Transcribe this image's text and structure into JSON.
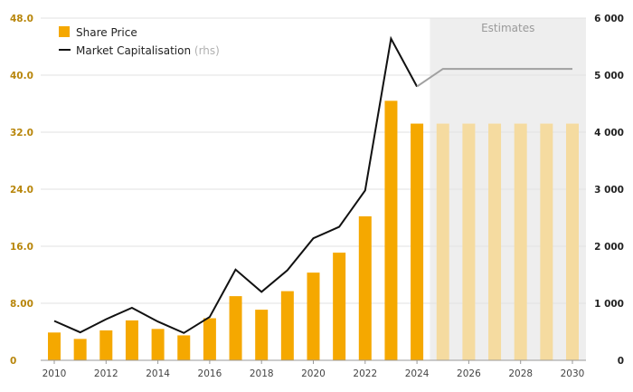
{
  "chart_data": {
    "type": "bar",
    "x": [
      "2010",
      "2011",
      "2012",
      "2013",
      "2014",
      "2015",
      "2016",
      "2017",
      "2018",
      "2019",
      "2020",
      "2021",
      "2022",
      "2023",
      "2024",
      "2025",
      "2026",
      "2027",
      "2028",
      "2029",
      "2030"
    ],
    "x_tick_labels": [
      "2010",
      "2012",
      "2014",
      "2016",
      "2018",
      "2020",
      "2022",
      "2024",
      "2026",
      "2028",
      "2030"
    ],
    "series": [
      {
        "name": "Share Price",
        "type": "bar",
        "axis": "left",
        "color": "#f5a800",
        "estimate_color": "#f5dba0",
        "values": [
          3.9,
          3.0,
          4.2,
          5.6,
          4.4,
          3.5,
          5.9,
          9.0,
          7.1,
          9.7,
          12.3,
          15.1,
          20.2,
          36.4,
          33.2,
          33.2,
          33.2,
          33.2,
          33.2,
          33.2,
          33.2
        ]
      },
      {
        "name": "Market Capitalisation",
        "name_suffix": "(rhs)",
        "type": "line",
        "axis": "right",
        "color": "#111111",
        "estimate_color": "#a0a0a0",
        "values": [
          690,
          490,
          720,
          920,
          680,
          480,
          760,
          1590,
          1200,
          1580,
          2140,
          2340,
          2980,
          5640,
          4800,
          5110,
          5110,
          5110,
          5110,
          5110,
          5110
        ]
      }
    ],
    "left_axis": {
      "ticks": [
        "0",
        "8.00",
        "16.0",
        "24.0",
        "32.0",
        "40.0",
        "48.0"
      ],
      "range": [
        0,
        48
      ]
    },
    "right_axis": {
      "ticks": [
        "0",
        "1 000",
        "2 000",
        "3 000",
        "4 000",
        "5 000",
        "6 000"
      ],
      "range": [
        0,
        6000
      ]
    },
    "estimates": {
      "label": "Estimates",
      "from": "2025",
      "to": "2030"
    },
    "grid": true,
    "legend_position": "top-left"
  }
}
